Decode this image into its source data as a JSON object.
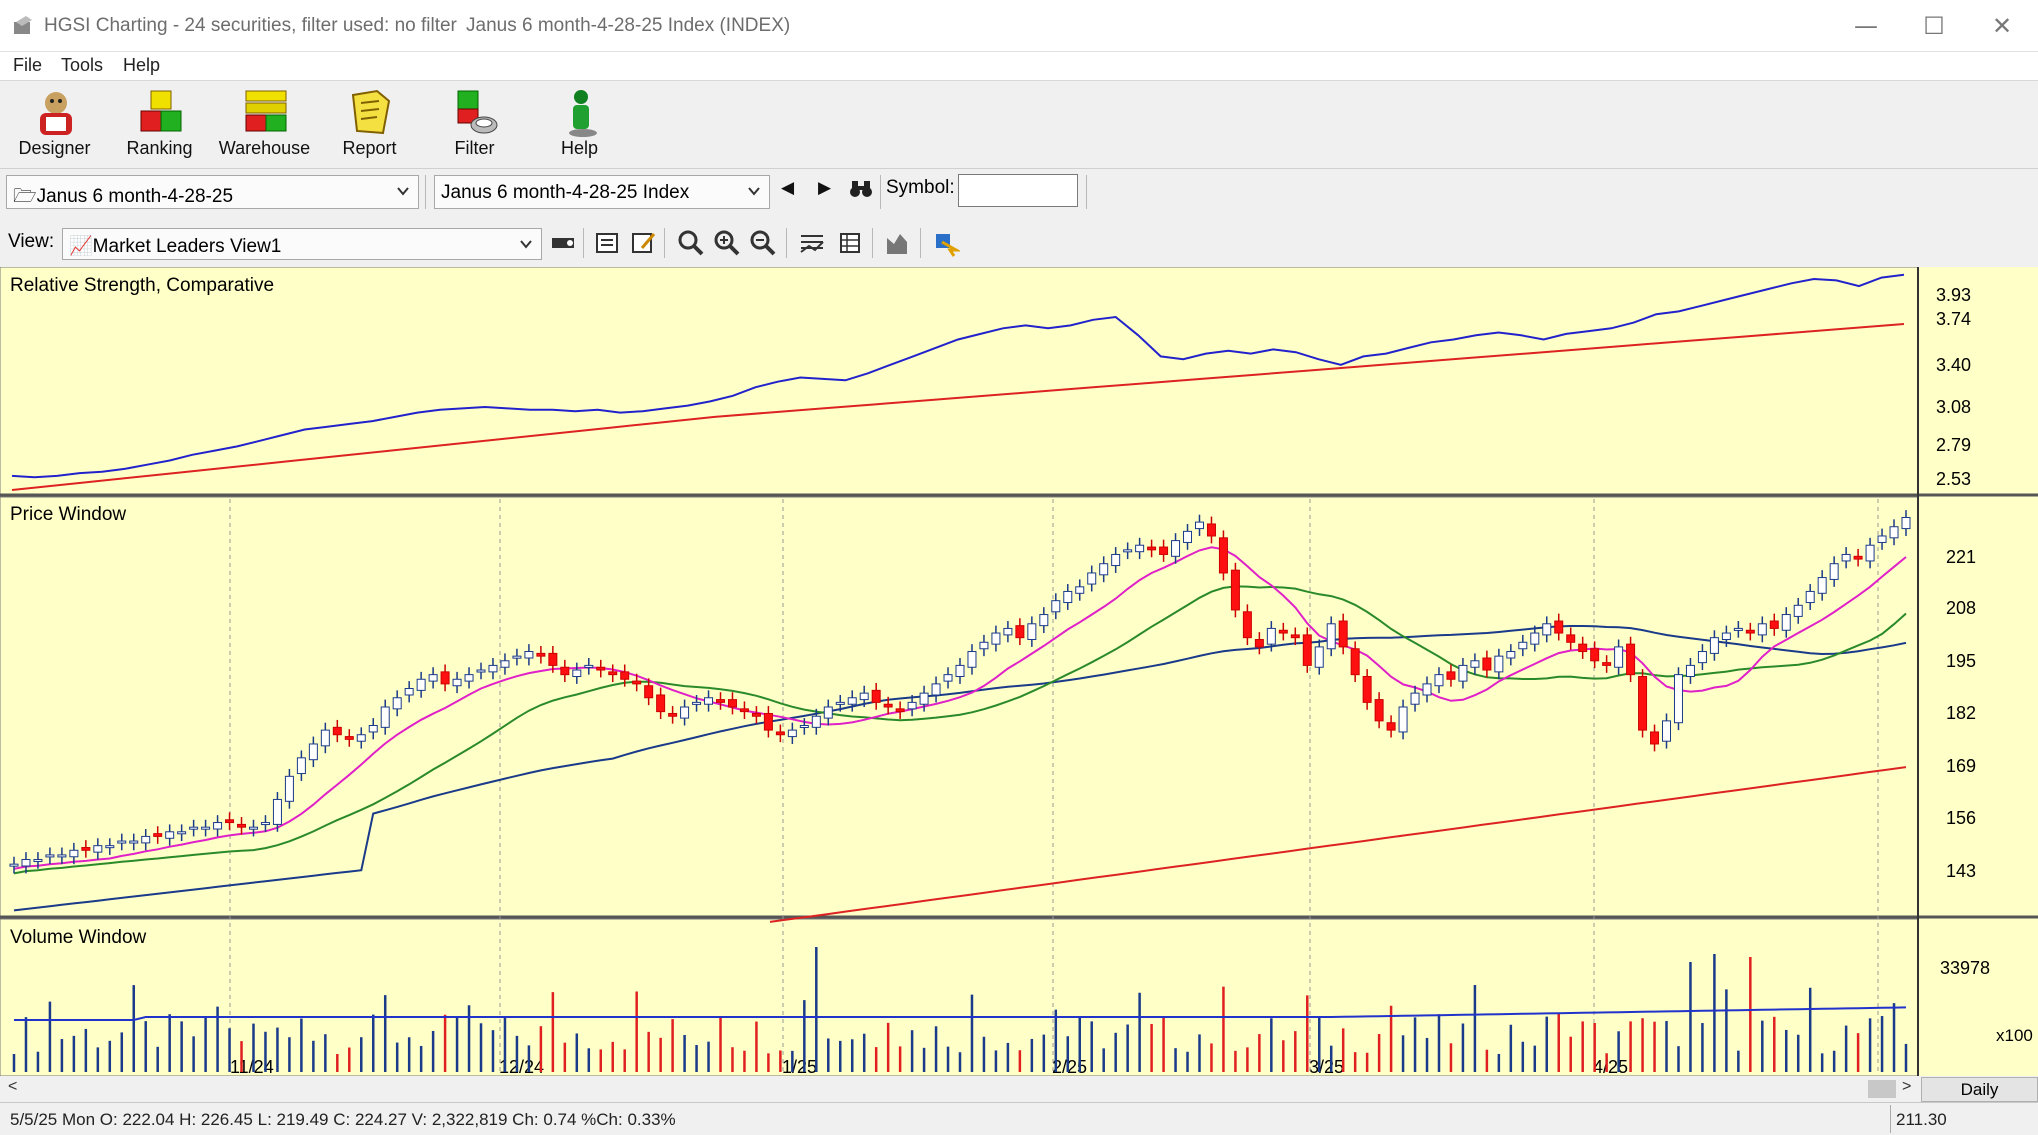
{
  "window": {
    "title": "HGSI Charting - 24 securities, filter used: no filter",
    "document": "Janus 6 month-4-28-25 Index (INDEX)"
  },
  "menu": [
    "File",
    "Tools",
    "Help"
  ],
  "toolbar": [
    {
      "label": "Designer",
      "icon": "designer-icon"
    },
    {
      "label": "Ranking",
      "icon": "ranking-icon"
    },
    {
      "label": "Warehouse",
      "icon": "warehouse-icon"
    },
    {
      "label": "Report",
      "icon": "report-icon"
    },
    {
      "label": "Filter",
      "icon": "filter-icon"
    },
    {
      "label": "Help",
      "icon": "help-icon"
    }
  ],
  "selectors": {
    "list_combo": "Janus 6 month-4-28-25",
    "security_combo": "Janus 6 month-4-28-25 Index",
    "symbol_label": "Symbol:",
    "symbol_value": ""
  },
  "view": {
    "label": "View:",
    "selected": "Market Leaders View1"
  },
  "chart_data": [
    {
      "type": "line",
      "title": "Relative Strength, Comparative",
      "y_ticks": [
        "3.93",
        "3.74",
        "3.40",
        "3.08",
        "2.79",
        "2.53"
      ],
      "series": [
        {
          "color": "#2222cc",
          "values": [
            2.55,
            2.54,
            2.55,
            2.57,
            2.58,
            2.6,
            2.63,
            2.66,
            2.7,
            2.73,
            2.76,
            2.8,
            2.84,
            2.88,
            2.9,
            2.92,
            2.94,
            2.97,
            3.0,
            3.02,
            3.03,
            3.04,
            3.03,
            3.02,
            3.02,
            3.01,
            3.02,
            3.0,
            3.01,
            3.03,
            3.05,
            3.08,
            3.12,
            3.18,
            3.22,
            3.25,
            3.24,
            3.23,
            3.28,
            3.34,
            3.4,
            3.46,
            3.52,
            3.56,
            3.6,
            3.62,
            3.6,
            3.62,
            3.66,
            3.68,
            3.55,
            3.4,
            3.38,
            3.42,
            3.44,
            3.42,
            3.45,
            3.43,
            3.38,
            3.34,
            3.4,
            3.42,
            3.46,
            3.5,
            3.52,
            3.55,
            3.57,
            3.55,
            3.52,
            3.56,
            3.58,
            3.6,
            3.64,
            3.7,
            3.72,
            3.76,
            3.8,
            3.84,
            3.88,
            3.92,
            3.95,
            3.94,
            3.9,
            3.96,
            3.98
          ]
        },
        {
          "color": "#dd2222",
          "values": [
            2.45,
            2.49,
            2.53,
            2.57,
            2.61,
            2.65,
            2.69,
            2.73,
            2.77,
            2.81,
            2.85,
            2.89,
            2.93,
            2.97,
            3.0,
            3.03,
            3.06,
            3.09,
            3.12,
            3.15,
            3.18,
            3.21,
            3.24,
            3.27,
            3.3,
            3.33,
            3.36,
            3.39,
            3.42,
            3.45,
            3.48,
            3.51,
            3.54,
            3.57,
            3.6,
            3.63
          ]
        }
      ]
    },
    {
      "type": "candlestick",
      "title": "Price Window",
      "y_ticks": [
        221,
        208,
        195,
        182,
        169,
        156,
        143
      ],
      "ylim": [
        138,
        228
      ],
      "x_ticks": [
        "11/24",
        "12/24",
        "1/25",
        "2/25",
        "3/25",
        "4/25"
      ],
      "closes": [
        149,
        150,
        150,
        151,
        151,
        152,
        152,
        153,
        153,
        154,
        154,
        155,
        155,
        156,
        156,
        157,
        157,
        158,
        158,
        157,
        157,
        158,
        163,
        168,
        172,
        175,
        178,
        177,
        176,
        177,
        179,
        183,
        185,
        187,
        189,
        190,
        188,
        189,
        190,
        191,
        192,
        193,
        194,
        195,
        194,
        192,
        190,
        191,
        192,
        191,
        190,
        189,
        188,
        185,
        182,
        181,
        183,
        184,
        185,
        184,
        183,
        182,
        181,
        178,
        177,
        178,
        179,
        181,
        183,
        184,
        185,
        186,
        184,
        183,
        182,
        184,
        186,
        188,
        190,
        192,
        195,
        197,
        199,
        200,
        198,
        201,
        203,
        206,
        208,
        209,
        212,
        214,
        216,
        217,
        218,
        217,
        216,
        219,
        221,
        223,
        220,
        212,
        204,
        198,
        196,
        200,
        199,
        198,
        192,
        196,
        201,
        196,
        190,
        184,
        180,
        178,
        183,
        186,
        188,
        190,
        189,
        192,
        193,
        191,
        194,
        195,
        197,
        199,
        201,
        199,
        197,
        195,
        193,
        192,
        196,
        190,
        178,
        175,
        180,
        190,
        192,
        195,
        198,
        199,
        200,
        199,
        201,
        200,
        203,
        205,
        208,
        211,
        214,
        216,
        215,
        218,
        220,
        222,
        224
      ],
      "ma_pink": [
        146,
        147,
        148,
        150,
        152,
        154,
        156,
        158,
        160,
        163,
        166,
        168,
        171,
        174,
        177,
        180,
        183,
        185,
        187,
        188,
        189,
        190,
        190,
        189,
        188,
        187,
        186,
        185,
        184,
        183,
        182,
        181,
        180,
        179,
        179,
        180,
        181,
        183,
        185,
        187,
        189,
        191,
        193,
        196,
        200,
        203,
        206,
        209,
        212,
        215,
        217,
        219,
        219,
        216,
        212,
        208,
        205,
        202,
        199,
        197,
        196,
        194,
        192,
        189,
        187,
        186,
        186,
        188,
        190,
        192,
        193,
        194,
        195,
        196,
        196,
        195,
        193,
        191,
        190,
        191,
        193,
        195,
        196,
        198,
        200,
        202,
        205,
        208,
        211,
        213,
        216,
        218
      ]
    },
    {
      "type": "bar",
      "title": "Volume Window",
      "y_ticks": [
        "33978"
      ],
      "unit_label": "x100"
    }
  ],
  "status": {
    "text": "5/5/25 Mon O: 222.04 H: 226.45 L: 219.49 C: 224.27 V: 2,322,819 Ch: 0.74 %Ch: 0.33%",
    "value": "211.30",
    "period_button": "Daily"
  }
}
